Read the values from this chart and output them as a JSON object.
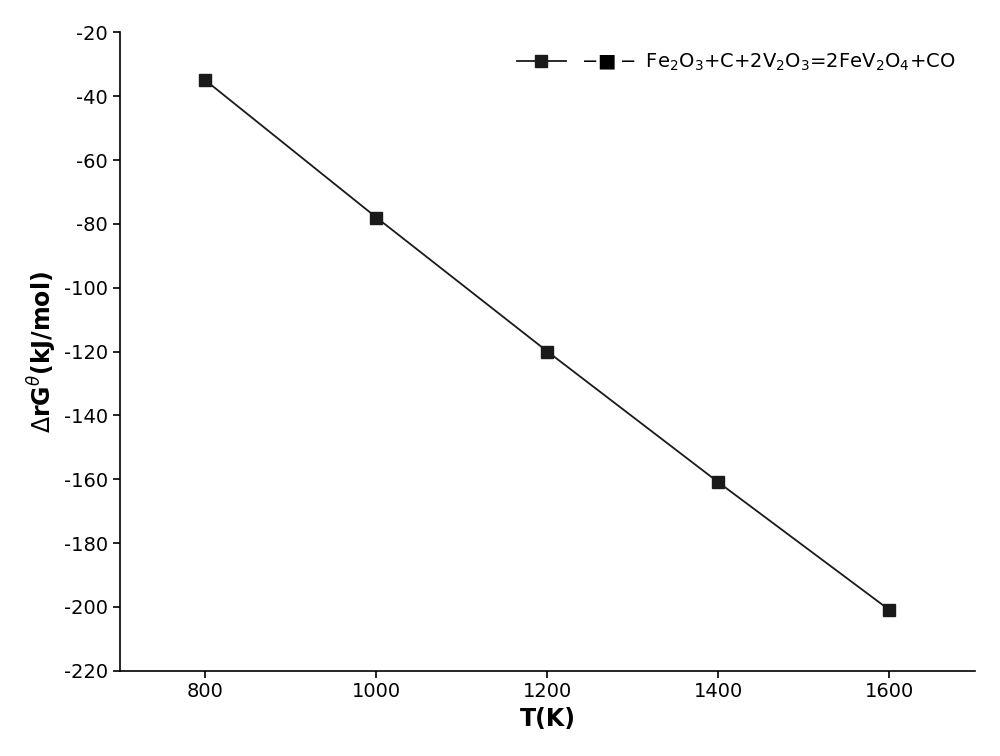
{
  "x": [
    800,
    1000,
    1200,
    1400,
    1600
  ],
  "y": [
    -35,
    -78,
    -120,
    -161,
    -201
  ],
  "xlim": [
    700,
    1700
  ],
  "ylim": [
    -220,
    -20
  ],
  "xticks": [
    800,
    1000,
    1200,
    1400,
    1600
  ],
  "yticks": [
    -220,
    -200,
    -180,
    -160,
    -140,
    -120,
    -100,
    -80,
    -60,
    -40,
    -20
  ],
  "xlabel": "T(K)",
  "ylabel": "$\\Delta$rG$^{\\theta}$(kJ/mol)",
  "line_color": "#1a1a1a",
  "marker_color": "#1a1a1a",
  "marker_style": "s",
  "marker_size": 9,
  "line_width": 1.3,
  "legend_label": "$-\\blacksquare-$ Fe$_{2}$O$_{3}$+C+2V$_{2}$O$_{3}$=2FeV$_{2}$O$_{4}$+CO",
  "label_fontsize": 17,
  "tick_fontsize": 14,
  "legend_fontsize": 14,
  "background_color": "#ffffff"
}
